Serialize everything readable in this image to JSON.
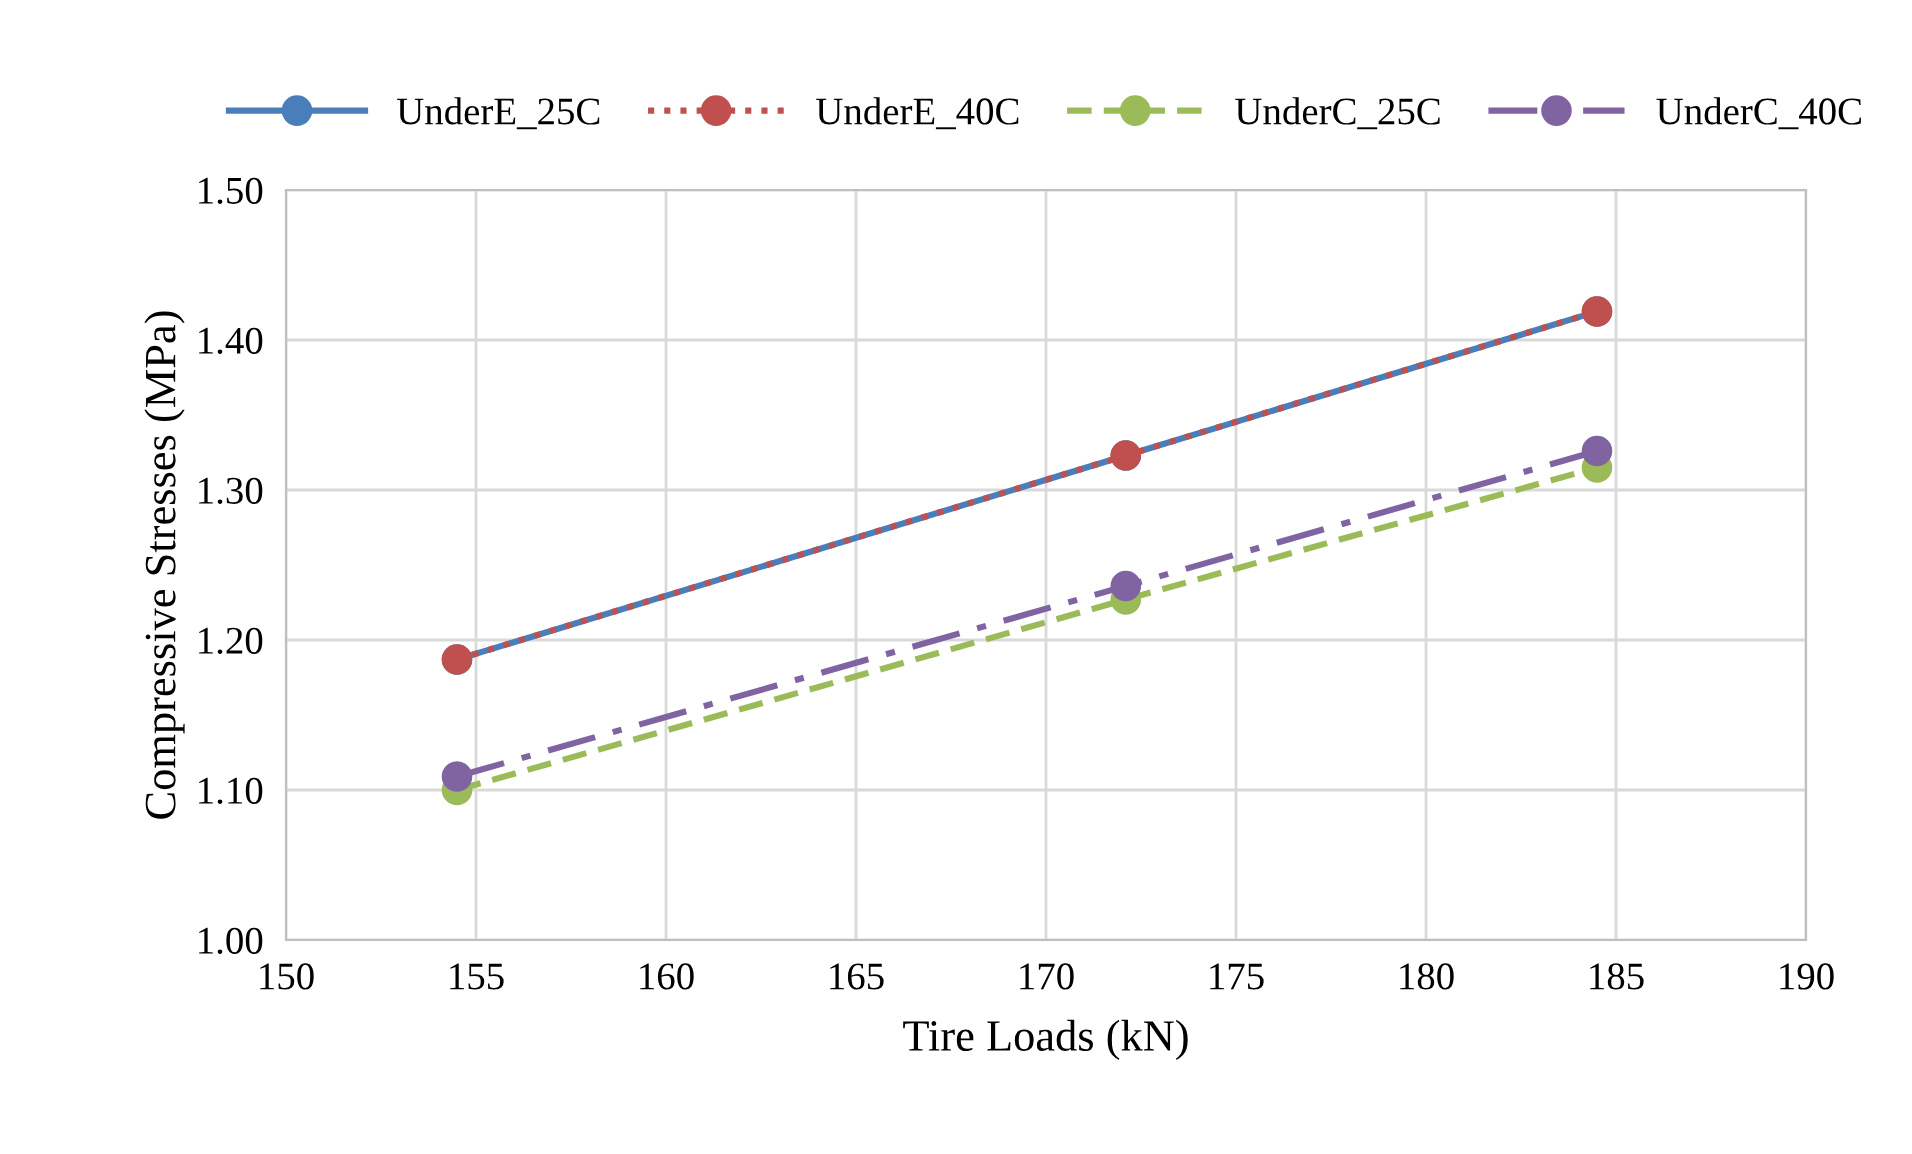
{
  "chart_data": {
    "type": "line",
    "xlabel": "Tire Loads (kN)",
    "ylabel": "Compressive Stresses (MPa)",
    "x": [
      154.5,
      172.1,
      184.5
    ],
    "series": [
      {
        "name": "UnderE_25C",
        "color": "#4a7ebb",
        "line_style": "solid",
        "values": [
          1.187,
          1.323,
          1.419
        ]
      },
      {
        "name": "UnderE_40C",
        "color": "#c0504d",
        "line_style": "dotted",
        "values": [
          1.187,
          1.323,
          1.419
        ]
      },
      {
        "name": "UnderC_25C",
        "color": "#9bbb59",
        "line_style": "dashed",
        "values": [
          1.1,
          1.227,
          1.315
        ]
      },
      {
        "name": "UnderC_40C",
        "color": "#8064a2",
        "line_style": "dashdot",
        "values": [
          1.109,
          1.236,
          1.326
        ]
      }
    ],
    "xlim": [
      150,
      190
    ],
    "xticks": [
      150,
      155,
      160,
      165,
      170,
      175,
      180,
      185,
      190
    ],
    "ylim": [
      1.0,
      1.5
    ],
    "yticks": [
      {
        "value": 1.0,
        "label": "1.00"
      },
      {
        "value": 1.1,
        "label": "1.10"
      },
      {
        "value": 1.2,
        "label": "1.20"
      },
      {
        "value": 1.3,
        "label": "1.30"
      },
      {
        "value": 1.4,
        "label": "1.40"
      },
      {
        "value": 1.5,
        "label": "1.50"
      }
    ],
    "grid": true,
    "legend": "top",
    "marker": "circle"
  }
}
